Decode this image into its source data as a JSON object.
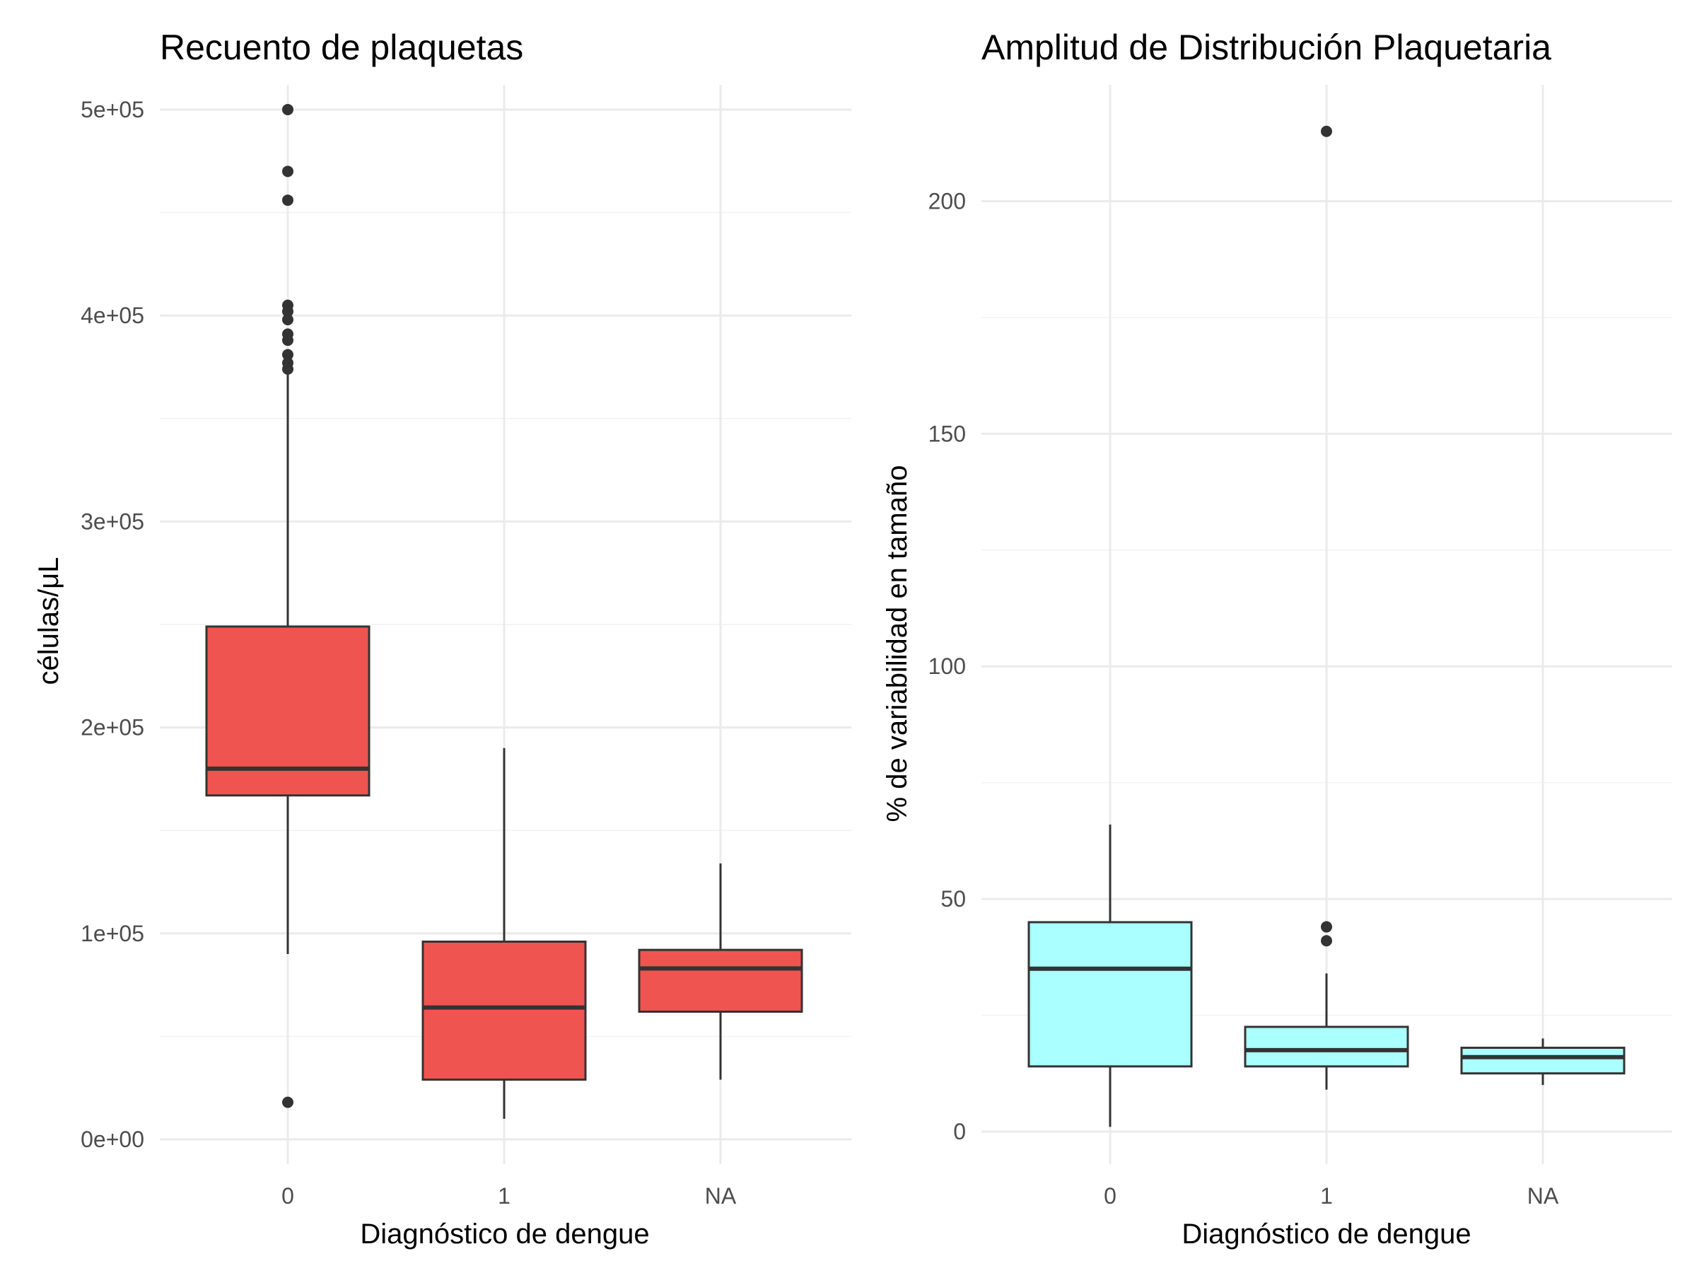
{
  "chart_data": [
    {
      "type": "boxplot",
      "title": "Recuento de plaquetas",
      "xlabel": "Diagnóstico de dengue",
      "ylabel": "células/μL",
      "categories": [
        "0",
        "1",
        "NA"
      ],
      "ylim": [
        -12000,
        512000
      ],
      "yticks": [
        0,
        100000,
        200000,
        300000,
        400000,
        500000
      ],
      "ytick_labels": [
        "0e+00",
        "1e+05",
        "2e+05",
        "3e+05",
        "4e+05",
        "5e+05"
      ],
      "grid": true,
      "fill_color": "#f05450",
      "boxes": [
        {
          "category": "0",
          "whisker_low": 90000,
          "q1": 167000,
          "median": 180000,
          "q3": 249000,
          "whisker_high": 373000,
          "outliers": [
            500000,
            470000,
            456000,
            405000,
            402000,
            398000,
            391000,
            388000,
            381000,
            377000,
            374000,
            18000
          ]
        },
        {
          "category": "1",
          "whisker_low": 10000,
          "q1": 29000,
          "median": 64000,
          "q3": 96000,
          "whisker_high": 190000,
          "outliers": []
        },
        {
          "category": "NA",
          "whisker_low": 29000,
          "q1": 62000,
          "median": 83000,
          "q3": 92000,
          "whisker_high": 134000,
          "outliers": []
        }
      ]
    },
    {
      "type": "boxplot",
      "title": "Amplitud de Distribución Plaquetaria",
      "xlabel": "Diagnóstico de dengue",
      "ylabel": "% de variabilidad en tamaño",
      "categories": [
        "0",
        "1",
        "NA"
      ],
      "ylim": [
        -7,
        225
      ],
      "yticks": [
        0,
        50,
        100,
        150,
        200
      ],
      "ytick_labels": [
        "0",
        "50",
        "100",
        "150",
        "200"
      ],
      "grid": true,
      "fill_color": "#aaffff",
      "boxes": [
        {
          "category": "0",
          "whisker_low": 1,
          "q1": 14,
          "median": 35,
          "q3": 45,
          "whisker_high": 66,
          "outliers": []
        },
        {
          "category": "1",
          "whisker_low": 9,
          "q1": 14,
          "median": 17.5,
          "q3": 22.5,
          "whisker_high": 34,
          "outliers": [
            215,
            44,
            41
          ]
        },
        {
          "category": "NA",
          "whisker_low": 10,
          "q1": 12.5,
          "median": 16,
          "q3": 18,
          "whisker_high": 20,
          "outliers": []
        }
      ]
    }
  ]
}
